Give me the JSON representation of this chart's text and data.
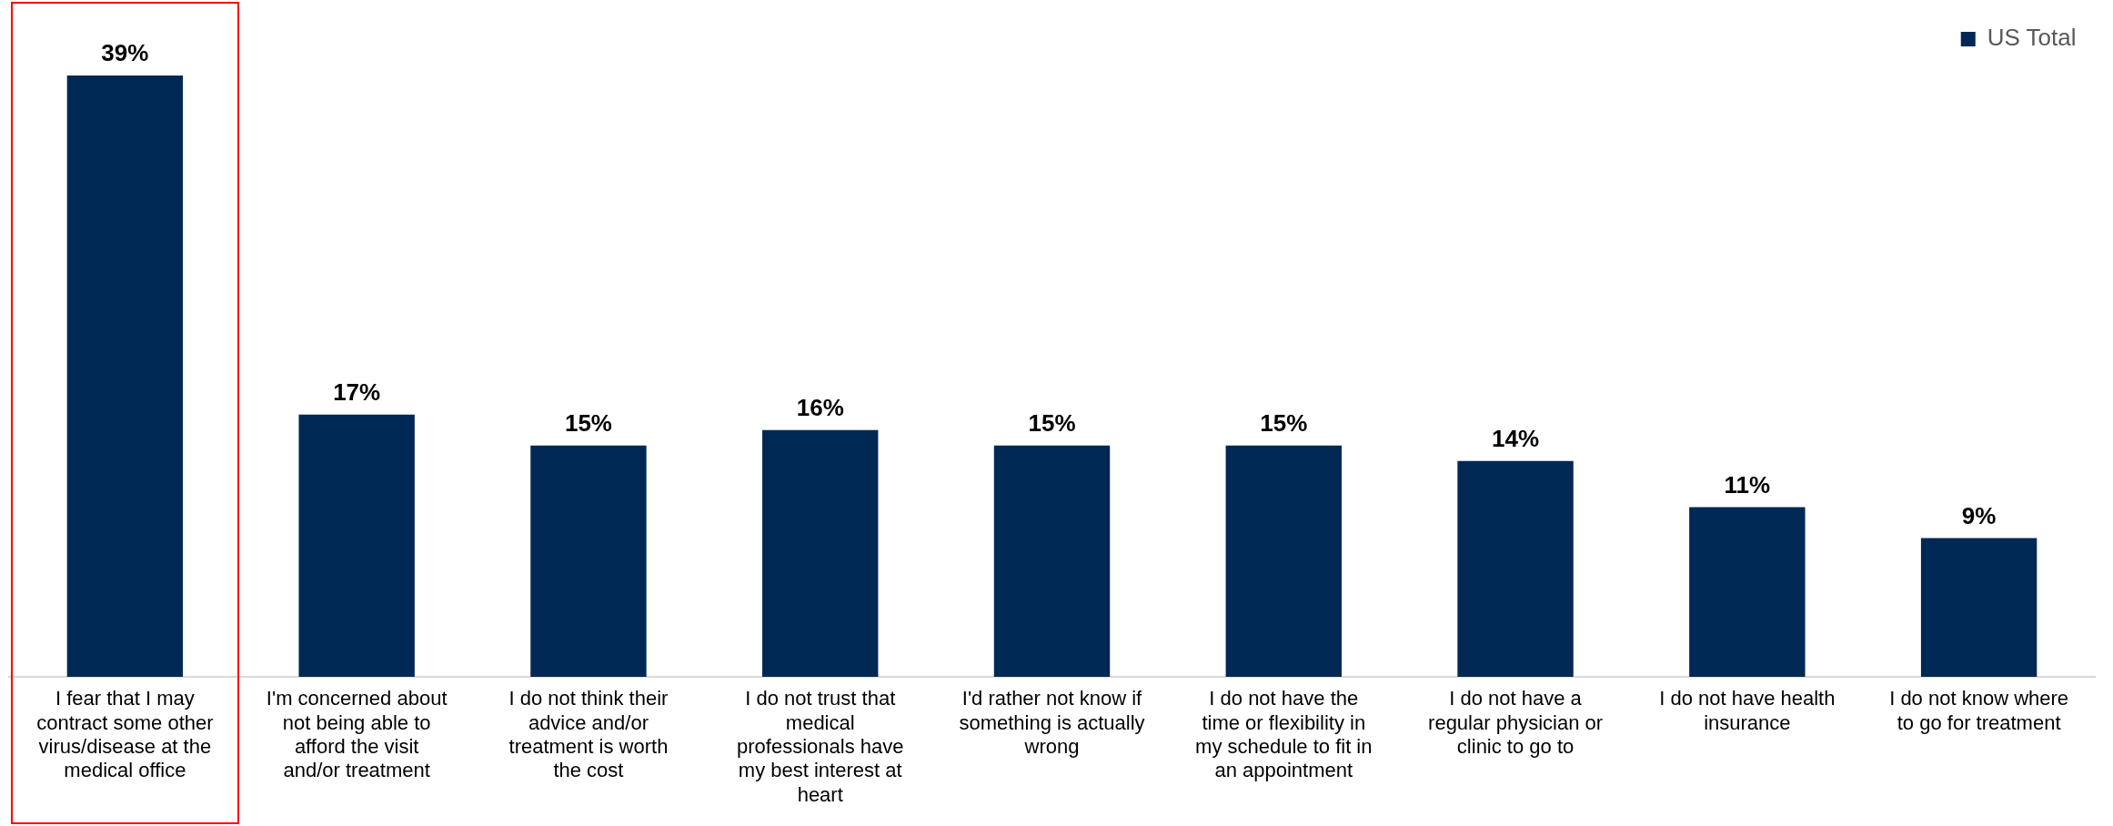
{
  "chart_data": {
    "type": "bar",
    "categories": [
      "I fear that I may contract some other virus/disease at the medical office",
      "I'm concerned about not being able to afford the visit and/or treatment",
      "I do not think their advice and/or treatment is worth the cost",
      "I do not trust that medical professionals have my best interest at heart",
      "I'd rather not know if something is actually wrong",
      "I do not have the time or flexibility in my schedule to fit in an appointment",
      "I do not have a regular physician or clinic to go to",
      "I do not have health insurance",
      "I do not know where to go for treatment"
    ],
    "series": [
      {
        "name": "US Total",
        "color": "#002855",
        "values": [
          39,
          17,
          15,
          16,
          15,
          15,
          14,
          11,
          9
        ],
        "value_labels": [
          "39%",
          "17%",
          "15%",
          "16%",
          "15%",
          "15%",
          "14%",
          "11%",
          "9%"
        ]
      }
    ],
    "legend": "top right",
    "grid": false
  }
}
